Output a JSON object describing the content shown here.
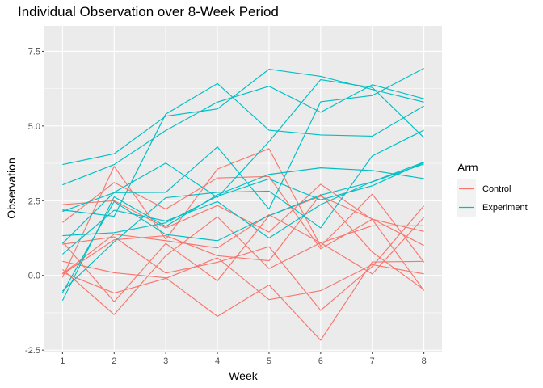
{
  "chart_data": {
    "type": "line",
    "title": "Individual Observation over 8-Week Period",
    "xlabel": "Week",
    "ylabel": "Observation",
    "x": [
      1,
      2,
      3,
      4,
      5,
      6,
      7,
      8
    ],
    "x_ticks": [
      "1",
      "2",
      "3",
      "4",
      "5",
      "6",
      "7",
      "8"
    ],
    "y_ticks": [
      -2.5,
      0.0,
      2.5,
      5.0,
      7.5
    ],
    "y_tick_labels": [
      "-2.5",
      "0.0",
      "2.5",
      "5.0",
      "7.5"
    ],
    "xlim": [
      0.65,
      8.35
    ],
    "ylim": [
      -2.55,
      8.35
    ],
    "grid": true,
    "legend": {
      "title": "Arm",
      "position": "right",
      "entries": [
        {
          "label": "Control",
          "color": "#F8766D"
        },
        {
          "label": "Experiment",
          "color": "#00BFC4"
        }
      ]
    },
    "series": [
      {
        "group": "Control",
        "values": [
          0.2,
          -1.31,
          0.66,
          1.96,
          0.23,
          1.09,
          0.05,
          1.94
        ]
      },
      {
        "group": "Control",
        "values": [
          1.13,
          -0.88,
          1.07,
          -0.18,
          2.0,
          2.65,
          1.89,
          1.0
        ]
      },
      {
        "group": "Control",
        "values": [
          1.77,
          3.11,
          2.22,
          3.26,
          3.31,
          0.89,
          1.88,
          1.47
        ]
      },
      {
        "group": "Control",
        "values": [
          0.05,
          1.38,
          1.16,
          0.92,
          2.03,
          1.09,
          1.66,
          1.66
        ]
      },
      {
        "group": "Control",
        "values": [
          0.47,
          0.09,
          -0.08,
          -1.37,
          -0.32,
          -2.17,
          0.45,
          0.47
        ]
      },
      {
        "group": "Control",
        "values": [
          2.37,
          2.5,
          1.59,
          2.34,
          1.45,
          3.05,
          1.87,
          -0.51
        ]
      },
      {
        "group": "Control",
        "values": [
          0.1,
          -0.59,
          -0.1,
          0.59,
          -0.81,
          -0.51,
          0.36,
          0.05
        ]
      },
      {
        "group": "Control",
        "values": [
          -0.07,
          3.65,
          1.21,
          3.56,
          4.24,
          0.98,
          2.72,
          0.44
        ]
      },
      {
        "group": "Control",
        "values": [
          1.04,
          1.29,
          0.08,
          0.44,
          0.96,
          -1.17,
          0.3,
          2.33
        ]
      },
      {
        "group": "Control",
        "values": [
          0.04,
          1.19,
          1.33,
          0.66,
          0.49,
          2.71,
          0.78,
          -0.48
        ]
      },
      {
        "group": "Experiment",
        "values": [
          3.03,
          3.71,
          4.85,
          5.8,
          6.33,
          5.46,
          6.38,
          5.91
        ]
      },
      {
        "group": "Experiment",
        "values": [
          -0.84,
          2.63,
          1.64,
          2.7,
          3.38,
          3.6,
          3.51,
          3.24
        ]
      },
      {
        "group": "Experiment",
        "values": [
          2.14,
          2.77,
          2.78,
          4.3,
          2.22,
          5.81,
          6.02,
          6.93
        ]
      },
      {
        "group": "Experiment",
        "values": [
          1.07,
          2.78,
          3.76,
          2.61,
          4.48,
          6.55,
          6.29,
          4.61
        ]
      },
      {
        "group": "Experiment",
        "values": [
          3.71,
          4.07,
          5.33,
          5.57,
          6.9,
          6.66,
          6.22,
          5.8
        ]
      },
      {
        "group": "Experiment",
        "values": [
          -0.58,
          2.47,
          1.37,
          1.16,
          2.0,
          2.69,
          3.13,
          3.73
        ]
      },
      {
        "group": "Experiment",
        "values": [
          1.33,
          1.43,
          1.76,
          2.65,
          3.23,
          2.53,
          3.0,
          3.78
        ]
      },
      {
        "group": "Experiment",
        "values": [
          0.71,
          2.18,
          1.82,
          2.47,
          1.25,
          2.37,
          3.14,
          3.79
        ]
      },
      {
        "group": "Experiment",
        "values": [
          -0.52,
          1.12,
          2.6,
          2.78,
          2.82,
          1.59,
          4.0,
          4.86
        ]
      },
      {
        "group": "Experiment",
        "values": [
          2.19,
          1.98,
          5.4,
          6.42,
          4.86,
          4.7,
          4.66,
          5.67
        ]
      }
    ]
  }
}
